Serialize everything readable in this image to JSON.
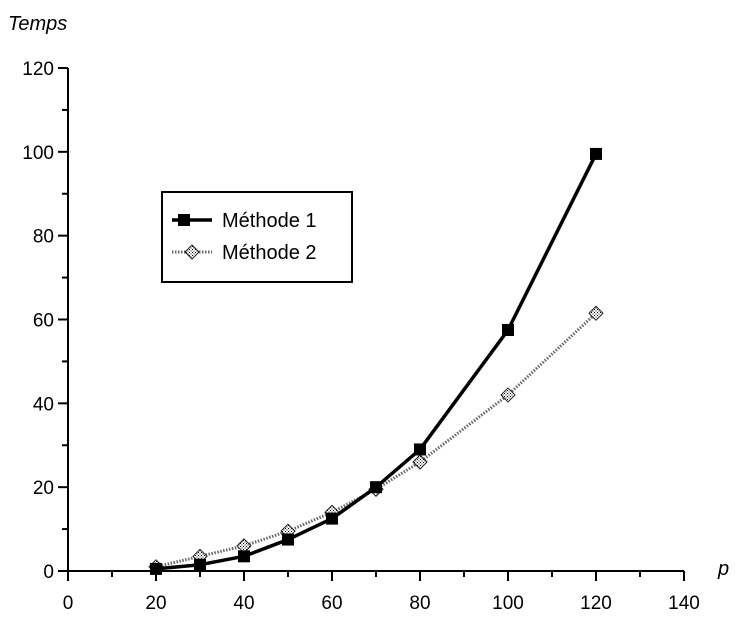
{
  "chart_data": {
    "type": "line",
    "title": "",
    "xlabel": "p",
    "ylabel": "Temps",
    "xlim": [
      0,
      140
    ],
    "ylim": [
      0,
      120
    ],
    "x_ticks": [
      0,
      20,
      40,
      60,
      80,
      100,
      120,
      140
    ],
    "y_ticks": [
      0,
      20,
      40,
      60,
      80,
      100,
      120
    ],
    "grid": false,
    "legend_position": "upper-left",
    "series": [
      {
        "name": "Méthode 1",
        "marker": "square",
        "color": "#000000",
        "x": [
          20,
          30,
          40,
          50,
          60,
          70,
          80,
          100,
          120
        ],
        "y": [
          0.5,
          1.5,
          3.5,
          7.5,
          12.5,
          20,
          29,
          57.5,
          99.5
        ]
      },
      {
        "name": "Méthode 2",
        "marker": "diamond",
        "color": "#555555",
        "x": [
          20,
          30,
          40,
          50,
          60,
          70,
          80,
          100,
          120
        ],
        "y": [
          1,
          3.5,
          6,
          9.5,
          14,
          19.5,
          26,
          42,
          61.5
        ]
      }
    ]
  }
}
